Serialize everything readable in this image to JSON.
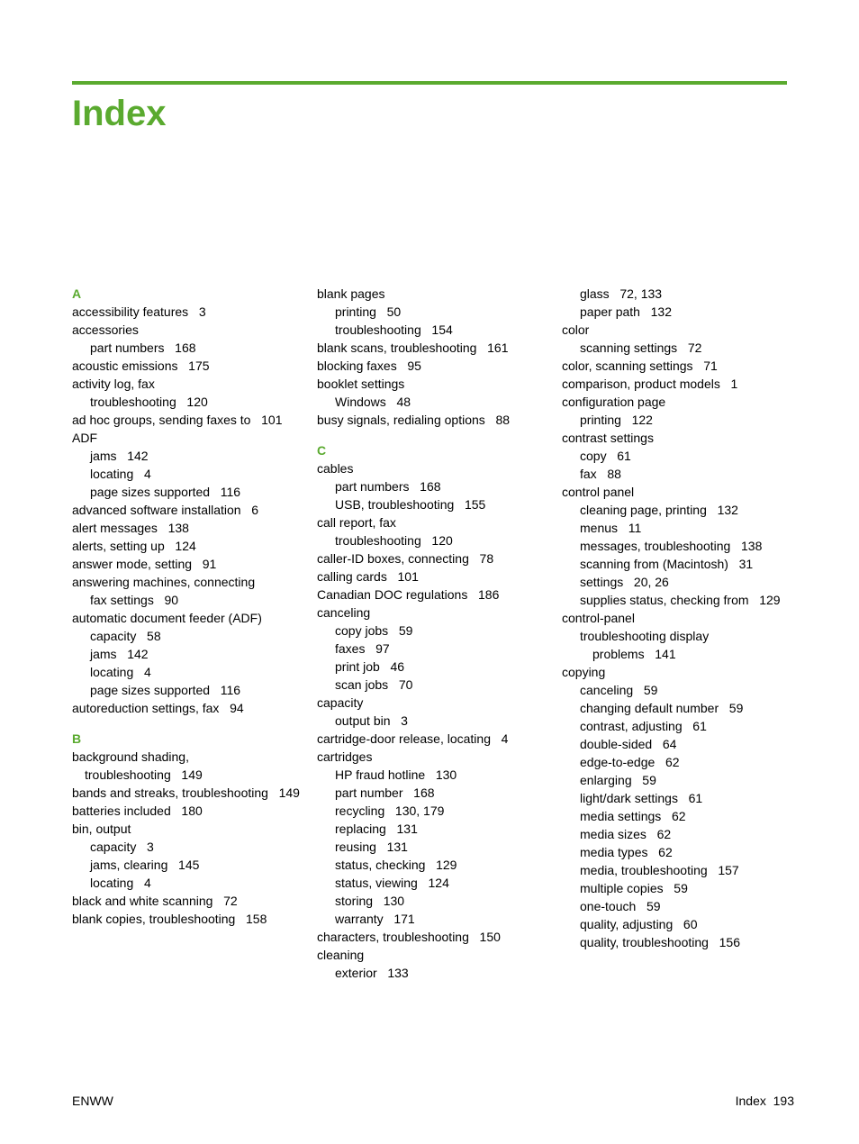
{
  "colors": {
    "accent": "#5aaa2f",
    "text": "#000000",
    "background": "#ffffff"
  },
  "title": "Index",
  "footer": {
    "left": "ENWW",
    "right_label": "Index",
    "right_page": "193"
  },
  "columns": [
    {
      "blocks": [
        {
          "letter": "A"
        },
        {
          "indent": 0,
          "text": "accessibility features",
          "pages": "3"
        },
        {
          "indent": 0,
          "text": "accessories"
        },
        {
          "indent": 1,
          "text": "part numbers",
          "pages": "168"
        },
        {
          "indent": 0,
          "text": "acoustic emissions",
          "pages": "175"
        },
        {
          "indent": 0,
          "text": "activity log, fax"
        },
        {
          "indent": 1,
          "text": "troubleshooting",
          "pages": "120"
        },
        {
          "indent": 0,
          "text": "ad hoc groups, sending faxes to",
          "pages": "101",
          "wrapped": true
        },
        {
          "indent": 0,
          "text": "ADF"
        },
        {
          "indent": 1,
          "text": "jams",
          "pages": "142"
        },
        {
          "indent": 1,
          "text": "locating",
          "pages": "4"
        },
        {
          "indent": 1,
          "text": "page sizes supported",
          "pages": "116"
        },
        {
          "indent": 0,
          "text": "advanced software installation",
          "pages": "6"
        },
        {
          "indent": 0,
          "text": "alert messages",
          "pages": "138"
        },
        {
          "indent": 0,
          "text": "alerts, setting up",
          "pages": "124"
        },
        {
          "indent": 0,
          "text": "answer mode, setting",
          "pages": "91"
        },
        {
          "indent": 0,
          "text": "answering machines, connecting"
        },
        {
          "indent": 1,
          "text": "fax settings",
          "pages": "90"
        },
        {
          "indent": 0,
          "text": "automatic document feeder (ADF)"
        },
        {
          "indent": 1,
          "text": "capacity",
          "pages": "58"
        },
        {
          "indent": 1,
          "text": "jams",
          "pages": "142"
        },
        {
          "indent": 1,
          "text": "locating",
          "pages": "4"
        },
        {
          "indent": 1,
          "text": "page sizes supported",
          "pages": "116"
        },
        {
          "indent": 0,
          "text": "autoreduction settings, fax",
          "pages": "94"
        },
        {
          "letter": "B",
          "gap": true
        },
        {
          "indent": 0,
          "text": "background shading, troubleshooting",
          "pages": "149",
          "wrapped": true
        },
        {
          "indent": 0,
          "text": "bands and streaks, troubleshooting",
          "pages": "149",
          "wrapped": true
        },
        {
          "indent": 0,
          "text": "batteries included",
          "pages": "180"
        },
        {
          "indent": 0,
          "text": "bin, output"
        },
        {
          "indent": 1,
          "text": "capacity",
          "pages": "3"
        },
        {
          "indent": 1,
          "text": "jams, clearing",
          "pages": "145"
        },
        {
          "indent": 1,
          "text": "locating",
          "pages": "4"
        },
        {
          "indent": 0,
          "text": "black and white scanning",
          "pages": "72"
        },
        {
          "indent": 0,
          "text": "blank copies, troubleshooting",
          "pages": "158",
          "wrapped": true
        }
      ]
    },
    {
      "blocks": [
        {
          "indent": 0,
          "text": "blank pages"
        },
        {
          "indent": 1,
          "text": "printing",
          "pages": "50"
        },
        {
          "indent": 1,
          "text": "troubleshooting",
          "pages": "154"
        },
        {
          "indent": 0,
          "text": "blank scans, troubleshooting",
          "pages": "161"
        },
        {
          "indent": 0,
          "text": "blocking faxes",
          "pages": "95"
        },
        {
          "indent": 0,
          "text": "booklet settings"
        },
        {
          "indent": 1,
          "text": "Windows",
          "pages": "48"
        },
        {
          "indent": 0,
          "text": "busy signals, redialing options",
          "pages": "88"
        },
        {
          "letter": "C",
          "gap": true
        },
        {
          "indent": 0,
          "text": "cables"
        },
        {
          "indent": 1,
          "text": "part numbers",
          "pages": "168"
        },
        {
          "indent": 1,
          "text": "USB, troubleshooting",
          "pages": "155"
        },
        {
          "indent": 0,
          "text": "call report, fax"
        },
        {
          "indent": 1,
          "text": "troubleshooting",
          "pages": "120"
        },
        {
          "indent": 0,
          "text": "caller-ID boxes, connecting",
          "pages": "78"
        },
        {
          "indent": 0,
          "text": "calling cards",
          "pages": "101"
        },
        {
          "indent": 0,
          "text": "Canadian DOC regulations",
          "pages": "186"
        },
        {
          "indent": 0,
          "text": "canceling"
        },
        {
          "indent": 1,
          "text": "copy jobs",
          "pages": "59"
        },
        {
          "indent": 1,
          "text": "faxes",
          "pages": "97"
        },
        {
          "indent": 1,
          "text": "print job",
          "pages": "46"
        },
        {
          "indent": 1,
          "text": "scan jobs",
          "pages": "70"
        },
        {
          "indent": 0,
          "text": "capacity"
        },
        {
          "indent": 1,
          "text": "output bin",
          "pages": "3"
        },
        {
          "indent": 0,
          "text": "cartridge-door release, locating",
          "pages": "4"
        },
        {
          "indent": 0,
          "text": "cartridges"
        },
        {
          "indent": 1,
          "text": "HP fraud hotline",
          "pages": "130"
        },
        {
          "indent": 1,
          "text": "part number",
          "pages": "168"
        },
        {
          "indent": 1,
          "text": "recycling",
          "pages": "130,  179"
        },
        {
          "indent": 1,
          "text": "replacing",
          "pages": "131"
        },
        {
          "indent": 1,
          "text": "reusing",
          "pages": "131"
        },
        {
          "indent": 1,
          "text": "status, checking",
          "pages": "129"
        },
        {
          "indent": 1,
          "text": "status, viewing",
          "pages": "124"
        },
        {
          "indent": 1,
          "text": "storing",
          "pages": "130"
        },
        {
          "indent": 1,
          "text": "warranty",
          "pages": "171"
        },
        {
          "indent": 0,
          "text": "characters, troubleshooting",
          "pages": "150"
        },
        {
          "indent": 0,
          "text": "cleaning"
        },
        {
          "indent": 1,
          "text": "exterior",
          "pages": "133"
        }
      ]
    },
    {
      "blocks": [
        {
          "indent": 1,
          "text": "glass",
          "pages": "72,  133"
        },
        {
          "indent": 1,
          "text": "paper path",
          "pages": "132"
        },
        {
          "indent": 0,
          "text": "color"
        },
        {
          "indent": 1,
          "text": "scanning settings",
          "pages": "72"
        },
        {
          "indent": 0,
          "text": "color, scanning settings",
          "pages": "71"
        },
        {
          "indent": 0,
          "text": "comparison, product models",
          "pages": "1"
        },
        {
          "indent": 0,
          "text": "configuration page"
        },
        {
          "indent": 1,
          "text": "printing",
          "pages": "122"
        },
        {
          "indent": 0,
          "text": "contrast settings"
        },
        {
          "indent": 1,
          "text": "copy",
          "pages": "61"
        },
        {
          "indent": 1,
          "text": "fax",
          "pages": "88"
        },
        {
          "indent": 0,
          "text": "control panel"
        },
        {
          "indent": 1,
          "text": "cleaning page, printing",
          "pages": "132"
        },
        {
          "indent": 1,
          "text": "menus",
          "pages": "11"
        },
        {
          "indent": 1,
          "text": "messages, troubleshooting",
          "pages": "138",
          "wrapped": true
        },
        {
          "indent": 1,
          "text": "scanning from (Macintosh)",
          "pages": "31"
        },
        {
          "indent": 1,
          "text": "settings",
          "pages": "20,  26"
        },
        {
          "indent": 1,
          "text": "supplies status, checking from",
          "pages": "129",
          "wrapped": true
        },
        {
          "indent": 0,
          "text": "control-panel"
        },
        {
          "indent": 1,
          "text": "troubleshooting display problems",
          "pages": "141",
          "wrapped": true
        },
        {
          "indent": 0,
          "text": "copying"
        },
        {
          "indent": 1,
          "text": "canceling",
          "pages": "59"
        },
        {
          "indent": 1,
          "text": "changing default number",
          "pages": "59"
        },
        {
          "indent": 1,
          "text": "contrast, adjusting",
          "pages": "61"
        },
        {
          "indent": 1,
          "text": "double-sided",
          "pages": "64"
        },
        {
          "indent": 1,
          "text": "edge-to-edge",
          "pages": "62"
        },
        {
          "indent": 1,
          "text": "enlarging",
          "pages": "59"
        },
        {
          "indent": 1,
          "text": "light/dark settings",
          "pages": "61"
        },
        {
          "indent": 1,
          "text": "media settings",
          "pages": "62"
        },
        {
          "indent": 1,
          "text": "media sizes",
          "pages": "62"
        },
        {
          "indent": 1,
          "text": "media types",
          "pages": "62"
        },
        {
          "indent": 1,
          "text": "media, troubleshooting",
          "pages": "157"
        },
        {
          "indent": 1,
          "text": "multiple copies",
          "pages": "59"
        },
        {
          "indent": 1,
          "text": "one-touch",
          "pages": "59"
        },
        {
          "indent": 1,
          "text": "quality, adjusting",
          "pages": "60"
        },
        {
          "indent": 1,
          "text": "quality, troubleshooting",
          "pages": "156"
        }
      ]
    }
  ]
}
